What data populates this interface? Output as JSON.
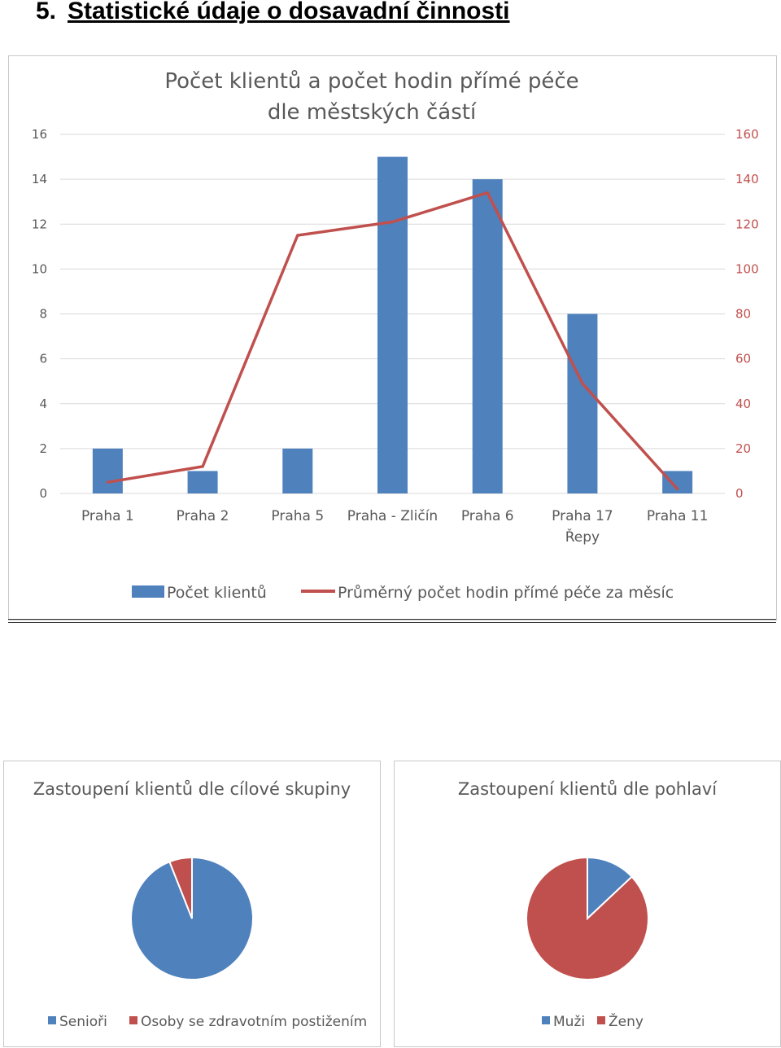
{
  "heading": {
    "number": "5.",
    "title": "Statistické údaje o dosavadní činnosti"
  },
  "chart_data": [
    {
      "type": "bar+line",
      "title_lines": [
        "Počet klientů a počet hodin přímé péče",
        "dle městských částí"
      ],
      "categories": [
        [
          "Praha 1"
        ],
        [
          "Praha 2"
        ],
        [
          "Praha 5"
        ],
        [
          "Praha - Zličín"
        ],
        [
          "Praha 6"
        ],
        [
          "Praha 17",
          "Řepy"
        ],
        [
          "Praha 11"
        ]
      ],
      "series": [
        {
          "name": "Počet klientů",
          "type": "bar",
          "axis": "left",
          "color": "#4f81bd",
          "values": [
            2,
            1,
            2,
            15,
            14,
            8,
            1
          ]
        },
        {
          "name": "Průměrný počet hodin přímé péče za měsíc",
          "type": "line",
          "axis": "right",
          "color": "#c0504d",
          "values": [
            5,
            12,
            115,
            121,
            134,
            49,
            2
          ]
        }
      ],
      "y_left": {
        "min": 0,
        "max": 16,
        "step": 2
      },
      "y_right": {
        "min": 0,
        "max": 160,
        "step": 20
      },
      "grid": true,
      "legend_position": "bottom"
    },
    {
      "type": "pie",
      "title": "Zastoupení klientů dle cílové skupiny",
      "slices": [
        {
          "label": "Senioři",
          "value": 94,
          "color": "#4f81bd"
        },
        {
          "label": "Osoby se zdravotním postižením",
          "value": 6,
          "color": "#c0504d"
        }
      ],
      "legend_position": "bottom"
    },
    {
      "type": "pie",
      "title": "Zastoupení klientů dle pohlaví",
      "slices": [
        {
          "label": "Muži",
          "value": 13,
          "color": "#4f81bd"
        },
        {
          "label": "Ženy",
          "value": 87,
          "color": "#c0504d"
        }
      ],
      "legend_position": "bottom"
    }
  ]
}
